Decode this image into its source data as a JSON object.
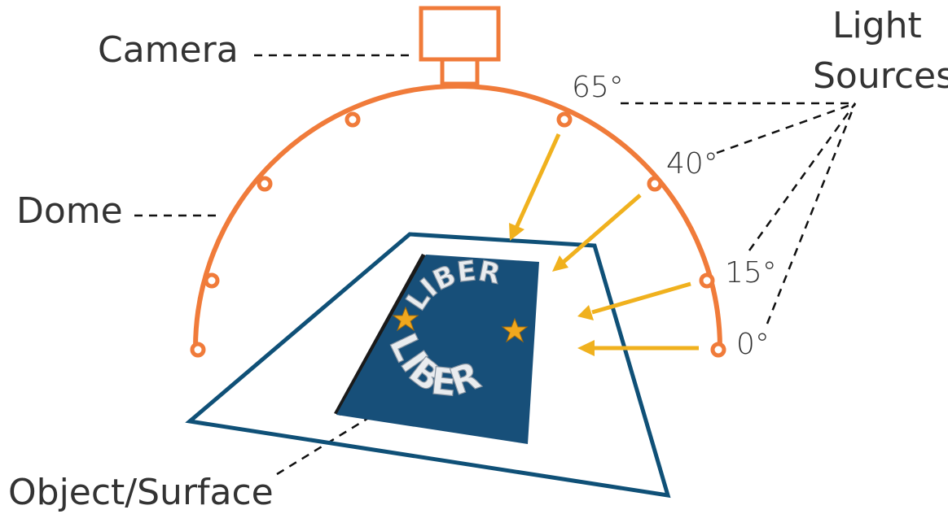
{
  "labels": {
    "camera": "Camera",
    "dome": "Dome",
    "object_surface": "Object/Surface",
    "light_sources_line1": "Light",
    "light_sources_line2": "Sources"
  },
  "angles": [
    "65°",
    "40°",
    "15°",
    "0°"
  ],
  "object_text": {
    "top_arc": "LIBER",
    "bottom_arc": "LIBER"
  },
  "colors": {
    "dome": "#f07b3a",
    "camera": "#f07b3a",
    "light_arrows": "#f0b11e",
    "surface_outline": "#0f5077",
    "object_fill": "#174f79",
    "text": "#333333",
    "star": "#f0a81e"
  },
  "icons": {
    "light_source": "circle-marker-icon",
    "star": "star-icon"
  }
}
